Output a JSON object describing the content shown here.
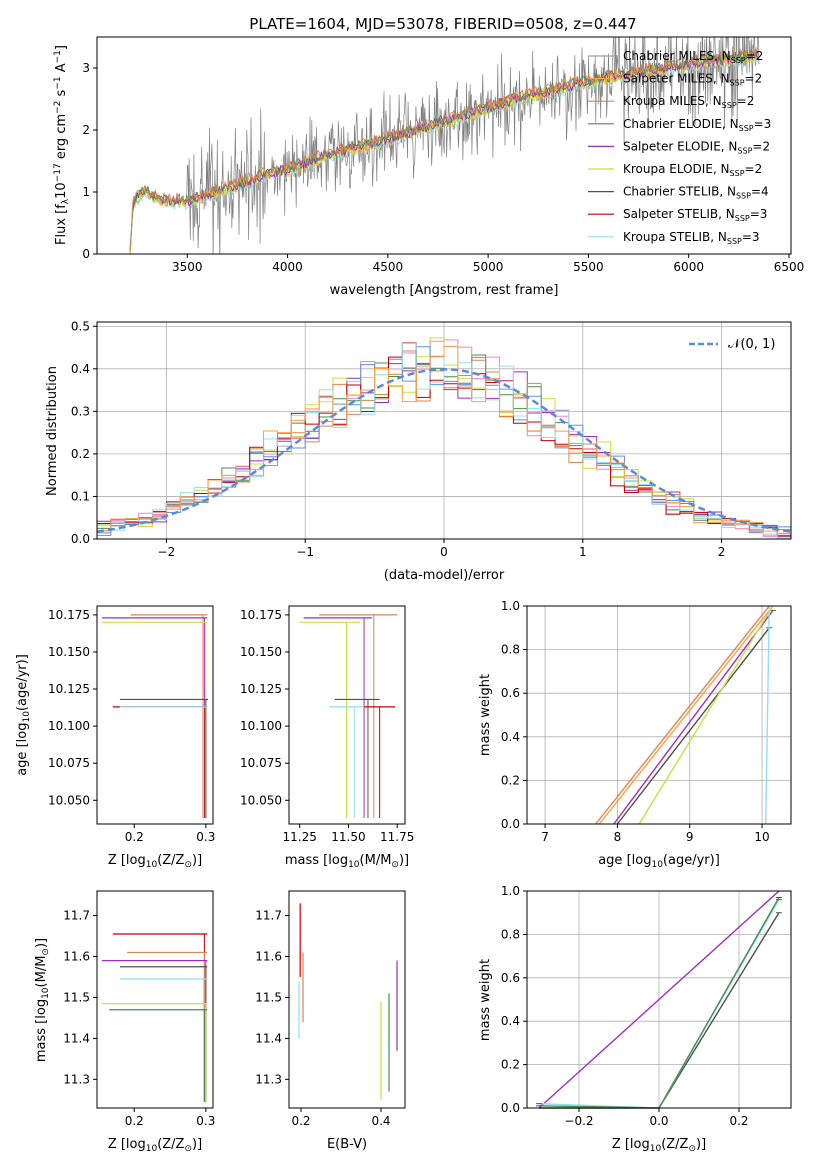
{
  "title": "PLATE=1604, MJD=53078, FIBERID=0508, z=0.447",
  "colors": {
    "Chabrier MILES": "#a0a0a0",
    "Salpeter MILES": "#ff9f40",
    "Kroupa MILES": "#dd8452",
    "Chabrier ELODIE": "#4c8c4c",
    "Salpeter ELODIE": "#9b30c0",
    "Kroupa ELODIE": "#c8e040",
    "Chabrier STELIB": "#505050",
    "Salpeter STELIB": "#c00000",
    "Kroupa STELIB": "#90e0f0",
    "gaussian": "#5b8bd8",
    "extra_pink": "#ff80c0",
    "extra_blue": "#6090e0"
  },
  "panels": {
    "spectrum": {
      "xlabel": "wavelength [Angstrom, rest frame]",
      "ylabel": "Flux [f",
      "ylabel_sub": "λ",
      "ylabel_rest": "10",
      "ylabel_exp": "−17",
      "ylabel_tail": " erg cm",
      "ylabel_exp2": "−2",
      "ylabel_tail2": " s",
      "ylabel_exp3": "−1",
      "ylabel_tail3": " A",
      "ylabel_exp4": "−1",
      "ylabel_end": "]",
      "xticks": [
        "3500",
        "4000",
        "4500",
        "5000",
        "5500",
        "6000",
        "6500"
      ],
      "yticks": [
        "0",
        "1",
        "2",
        "3"
      ]
    },
    "residuals": {
      "xlabel": "(data-model)/error",
      "ylabel": "Normed distribution",
      "xticks": [
        "−2",
        "−1",
        "0",
        "1",
        "2"
      ],
      "yticks": [
        "0.0",
        "0.1",
        "0.2",
        "0.3",
        "0.4",
        "0.5"
      ],
      "gauss_label": "𝒩(0, 1)"
    },
    "age_z": {
      "ylabel": "age  [log",
      "ylabel_sub": "10",
      "ylabel_rest": "(age/yr)]",
      "xlabel": "Z [log",
      "xlabel_sub": "10",
      "xlabel_rest": "(Z/Z",
      "xlabel_sub2": "⊙",
      "xlabel_end": ")]",
      "xticks": [
        "0.2",
        "0.3"
      ],
      "yticks": [
        "10.050",
        "10.075",
        "10.100",
        "10.125",
        "10.150",
        "10.175"
      ]
    },
    "age_mass": {
      "xlabel": "mass [log",
      "xlabel_sub": "10",
      "xlabel_rest": "(M/M",
      "xlabel_sub2": "⊙",
      "xlabel_end": ")]",
      "xticks": [
        "11.25",
        "11.50",
        "11.75"
      ],
      "yticks": [
        "10.050",
        "10.075",
        "10.100",
        "10.125",
        "10.150",
        "10.175"
      ]
    },
    "mw_age": {
      "ylabel": "mass weight",
      "xlabel": "age  [log",
      "xlabel_sub": "10",
      "xlabel_rest": "(age/yr)]",
      "xticks": [
        "7",
        "8",
        "9",
        "10"
      ],
      "yticks": [
        "0.0",
        "0.2",
        "0.4",
        "0.6",
        "0.8",
        "1.0"
      ]
    },
    "mass_z": {
      "ylabel": "mass [log",
      "ylabel_sub": "10",
      "ylabel_rest": "(M/M",
      "ylabel_sub2": "⊙",
      "ylabel_end": ")]",
      "xlabel": "Z [log",
      "xlabel_sub": "10",
      "xlabel_rest": "(Z/Z",
      "xlabel_sub2": "⊙",
      "xlabel_end": ")]",
      "xticks": [
        "0.2",
        "0.3"
      ],
      "yticks": [
        "11.3",
        "11.4",
        "11.5",
        "11.6",
        "11.7"
      ]
    },
    "mass_ebv": {
      "xlabel": "E(B-V)",
      "xticks": [
        "0.2",
        "0.4"
      ],
      "yticks": [
        "11.3",
        "11.4",
        "11.5",
        "11.6",
        "11.7"
      ]
    },
    "mw_z": {
      "ylabel": "mass weight",
      "xlabel": "Z [log",
      "xlabel_sub": "10",
      "xlabel_rest": "(Z/Z",
      "xlabel_sub2": "⊙",
      "xlabel_end": ")]",
      "xticks": [
        "−0.2",
        "0.0",
        "0.2"
      ],
      "yticks": [
        "0.0",
        "0.2",
        "0.4",
        "0.6",
        "0.8",
        "1.0"
      ]
    }
  },
  "legend": [
    {
      "label": "Chabrier MILES, N",
      "sub": "SSP",
      "tail": "=2"
    },
    {
      "label": "Salpeter MILES, N",
      "sub": "SSP",
      "tail": "=2"
    },
    {
      "label": "Kroupa MILES, N",
      "sub": "SSP",
      "tail": "=2"
    },
    {
      "label": "Chabrier ELODIE, N",
      "sub": "SSP",
      "tail": "=3"
    },
    {
      "label": "Salpeter ELODIE, N",
      "sub": "SSP",
      "tail": "=2"
    },
    {
      "label": "Kroupa ELODIE, N",
      "sub": "SSP",
      "tail": "=2"
    },
    {
      "label": "Chabrier STELIB, N",
      "sub": "SSP",
      "tail": "=4"
    },
    {
      "label": "Salpeter STELIB, N",
      "sub": "SSP",
      "tail": "=3"
    },
    {
      "label": "Kroupa STELIB, N",
      "sub": "SSP",
      "tail": "=3"
    }
  ],
  "chart_data": [
    {
      "type": "line",
      "panel": "spectrum",
      "xlim": [
        3050,
        6510
      ],
      "ylim": [
        0,
        3.5
      ],
      "notes": "noisy observed spectrum (grey) with 9 SSP model fits overlaid",
      "shape_x": [
        3215,
        3230,
        3260,
        3290,
        3330,
        3400,
        3500,
        3700,
        3900,
        4000,
        4200,
        4400,
        4600,
        4800,
        5000,
        5200,
        5400,
        5600,
        5800,
        6000,
        6200,
        6350
      ],
      "shape_y": [
        0.0,
        0.85,
        0.95,
        1.02,
        0.92,
        0.85,
        0.85,
        1.05,
        1.3,
        1.35,
        1.6,
        1.75,
        1.95,
        2.15,
        2.35,
        2.55,
        2.7,
        2.85,
        2.95,
        3.05,
        3.15,
        3.2
      ]
    },
    {
      "type": "line",
      "panel": "residuals",
      "xlim": [
        -2.5,
        2.5
      ],
      "ylim": [
        0,
        0.51
      ],
      "series": [
        {
          "name": "𝒩(0, 1)",
          "mu": 0,
          "sigma": 1
        }
      ],
      "bins": [
        -2.5,
        -2.4,
        -2.3,
        -2.2,
        -2.1,
        -2.0,
        -1.9,
        -1.8,
        -1.7,
        -1.6,
        -1.5,
        -1.4,
        -1.3,
        -1.2,
        -1.1,
        -1.0,
        -0.9,
        -0.8,
        -0.7,
        -0.6,
        -0.5,
        -0.4,
        -0.3,
        -0.2,
        -0.1,
        0.0,
        0.1,
        0.2,
        0.3,
        0.4,
        0.5,
        0.6,
        0.7,
        0.8,
        0.9,
        1.0,
        1.1,
        1.2,
        1.3,
        1.4,
        1.5,
        1.6,
        1.7,
        1.8,
        1.9,
        2.0,
        2.1,
        2.2,
        2.3,
        2.4,
        2.5
      ]
    },
    {
      "type": "scatter",
      "panel": "age_z",
      "xlim": [
        0.148,
        0.31
      ],
      "ylim": [
        10.034,
        10.181
      ],
      "points": [
        {
          "model": "Kroupa MILES",
          "x": 0.296,
          "y": 10.175,
          "xerr": [
            0.195,
            0.302
          ]
        },
        {
          "model": "Salpeter ELODIE",
          "x": 0.298,
          "y": 10.173,
          "xerr": [
            0.155,
            0.302
          ]
        },
        {
          "model": "Kroupa ELODIE",
          "x": 0.3,
          "y": 10.17,
          "xerr": [
            0.155,
            0.302
          ]
        },
        {
          "model": "Chabrier STELIB",
          "x": 0.3,
          "y": 10.118,
          "xerr": [
            0.18,
            0.303
          ]
        },
        {
          "model": "Salpeter STELIB",
          "x": 0.298,
          "y": 10.113,
          "xerr": [
            0.17,
            0.302
          ]
        },
        {
          "model": "Kroupa STELIB",
          "x": 0.297,
          "y": 10.113,
          "xerr": [
            0.18,
            0.302
          ]
        }
      ]
    },
    {
      "type": "scatter",
      "panel": "age_mass",
      "xlim": [
        11.195,
        11.79
      ],
      "ylim": [
        10.034,
        10.181
      ],
      "points": [
        {
          "model": "Kroupa MILES",
          "x": 11.63,
          "y": 10.175,
          "xerr": [
            11.35,
            11.75
          ]
        },
        {
          "model": "Salpeter ELODIE",
          "x": 11.58,
          "y": 10.173,
          "xerr": [
            11.27,
            11.62
          ]
        },
        {
          "model": "Kroupa ELODIE",
          "x": 11.49,
          "y": 10.17,
          "xerr": [
            11.25,
            11.56
          ]
        },
        {
          "model": "Chabrier STELIB",
          "x": 11.6,
          "y": 10.118,
          "xerr": [
            11.43,
            11.66
          ]
        },
        {
          "model": "Salpeter STELIB",
          "x": 11.66,
          "y": 10.113,
          "xerr": [
            11.58,
            11.74
          ]
        },
        {
          "model": "Kroupa STELIB",
          "x": 11.53,
          "y": 10.113,
          "xerr": [
            11.4,
            11.58
          ]
        }
      ]
    },
    {
      "type": "line",
      "panel": "mw_age",
      "xlim": [
        6.75,
        10.4
      ],
      "ylim": [
        0,
        1.0
      ],
      "series": [
        {
          "model": "Kroupa MILES",
          "x": [
            7.7,
            10.1
          ],
          "y": [
            0.0,
            1.0
          ]
        },
        {
          "model": "Salpeter MILES",
          "x": [
            7.75,
            10.15
          ],
          "y": [
            0.0,
            1.0
          ]
        },
        {
          "model": "Salpeter ELODIE",
          "x": [
            7.95,
            10.15
          ],
          "y": [
            0.0,
            0.98
          ]
        },
        {
          "model": "Chabrier STELIB",
          "x": [
            8.0,
            10.1
          ],
          "y": [
            0.0,
            0.9
          ]
        },
        {
          "model": "Kroupa ELODIE",
          "x": [
            8.3,
            10.15
          ],
          "y": [
            0.0,
            1.0
          ]
        },
        {
          "model": "Kroupa STELIB",
          "x": [
            10.05,
            10.1
          ],
          "y": [
            0.0,
            1.0
          ]
        }
      ]
    },
    {
      "type": "scatter",
      "panel": "mass_z",
      "xlim": [
        0.148,
        0.31
      ],
      "ylim": [
        11.23,
        11.76
      ],
      "points": [
        {
          "model": "Salpeter STELIB",
          "x": 0.298,
          "y": 11.655,
          "xerr": [
            0.17,
            0.302
          ]
        },
        {
          "model": "Kroupa MILES",
          "x": 0.298,
          "y": 11.61,
          "xerr": [
            0.19,
            0.302
          ]
        },
        {
          "model": "Salpeter ELODIE",
          "x": 0.3,
          "y": 11.59,
          "xerr": [
            0.155,
            0.302
          ]
        },
        {
          "model": "Chabrier STELIB",
          "x": 0.3,
          "y": 11.575,
          "xerr": [
            0.18,
            0.302
          ]
        },
        {
          "model": "Kroupa STELIB",
          "x": 0.297,
          "y": 11.545,
          "xerr": [
            0.18,
            0.302
          ]
        },
        {
          "model": "Kroupa ELODIE",
          "x": 0.3,
          "y": 11.485,
          "xerr": [
            0.155,
            0.302
          ]
        },
        {
          "model": "Chabrier ELODIE",
          "x": 0.298,
          "y": 11.47,
          "xerr": [
            0.165,
            0.302
          ]
        }
      ]
    },
    {
      "type": "scatter",
      "panel": "mass_ebv",
      "xlim": [
        0.17,
        0.46
      ],
      "ylim": [
        11.23,
        11.76
      ],
      "points": [
        {
          "model": "Salpeter STELIB",
          "x": 0.198,
          "y": 11.66,
          "yerr": [
            11.55,
            11.73
          ]
        },
        {
          "model": "Kroupa MILES",
          "x": 0.205,
          "y": 11.56,
          "yerr": [
            11.44,
            11.61
          ]
        },
        {
          "model": "Kroupa STELIB",
          "x": 0.195,
          "y": 11.45,
          "yerr": [
            11.4,
            11.54
          ]
        },
        {
          "model": "Salpeter ELODIE",
          "x": 0.44,
          "y": 11.48,
          "yerr": [
            11.37,
            11.59
          ]
        },
        {
          "model": "Chabrier ELODIE",
          "x": 0.42,
          "y": 11.4,
          "yerr": [
            11.27,
            11.51
          ]
        },
        {
          "model": "Kroupa ELODIE",
          "x": 0.4,
          "y": 11.36,
          "yerr": [
            11.25,
            11.49
          ]
        }
      ]
    },
    {
      "type": "line",
      "panel": "mw_z",
      "xlim": [
        -0.33,
        0.33
      ],
      "ylim": [
        0,
        1.0
      ],
      "series": [
        {
          "model": "Salpeter ELODIE",
          "x": [
            -0.3,
            0.3
          ],
          "y": [
            0.0,
            1.0
          ]
        },
        {
          "model": "Chabrier STELIB",
          "x": [
            -0.3,
            0.0,
            0.3
          ],
          "y": [
            0.0,
            0.0,
            0.9
          ]
        },
        {
          "model": "Kroupa STELIB",
          "x": [
            -0.3,
            0.0,
            0.3
          ],
          "y": [
            0.02,
            0.0,
            0.96
          ]
        },
        {
          "model": "Chabrier ELODIE",
          "x": [
            -0.3,
            0.0,
            0.3
          ],
          "y": [
            0.01,
            0.0,
            0.97
          ]
        }
      ]
    }
  ]
}
